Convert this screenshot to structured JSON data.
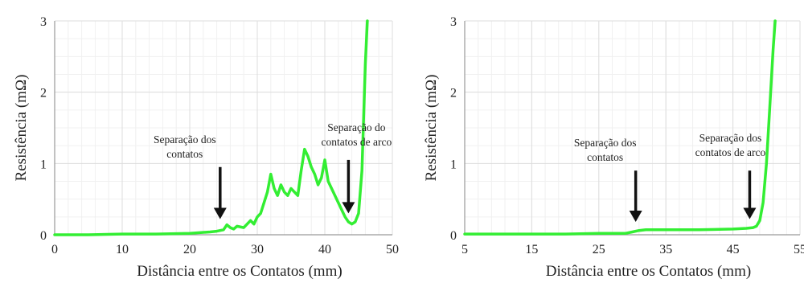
{
  "chart_data": [
    {
      "type": "line",
      "xlabel": "Distância entre os Contatos  (mm)",
      "ylabel": "Resistência (mΩ)",
      "xlim": [
        0,
        50
      ],
      "ylim": [
        0,
        3
      ],
      "xticks": [
        0,
        10,
        20,
        30,
        40,
        50
      ],
      "yticks": [
        0,
        1,
        2,
        3
      ],
      "grid": true,
      "line_color": "#33ee33",
      "series": [
        {
          "x": [
            0,
            5,
            10,
            15,
            20,
            23,
            24,
            25,
            25.5,
            26,
            26.5,
            27,
            28,
            28.5,
            29,
            29.5,
            30,
            30.5,
            31,
            31.5,
            32,
            32.5,
            33,
            33.5,
            34,
            34.5,
            35,
            35.5,
            36,
            36.5,
            37,
            37.5,
            38,
            38.5,
            39,
            39.5,
            40,
            40.5,
            41,
            41.5,
            42,
            42.5,
            43,
            43.5,
            44,
            44.5,
            45,
            45.5,
            46,
            46.3
          ],
          "y": [
            0.0,
            0.0,
            0.01,
            0.01,
            0.02,
            0.04,
            0.05,
            0.07,
            0.14,
            0.1,
            0.08,
            0.12,
            0.1,
            0.15,
            0.2,
            0.15,
            0.25,
            0.3,
            0.45,
            0.6,
            0.85,
            0.65,
            0.55,
            0.7,
            0.6,
            0.55,
            0.65,
            0.6,
            0.55,
            0.9,
            1.2,
            1.1,
            0.95,
            0.85,
            0.7,
            0.8,
            1.05,
            0.75,
            0.65,
            0.55,
            0.45,
            0.35,
            0.25,
            0.18,
            0.15,
            0.18,
            0.3,
            0.9,
            2.4,
            3.0
          ]
        }
      ],
      "annotations": [
        {
          "lines": [
            "Separação dos",
            "contatos"
          ],
          "arrow_x": 24.5,
          "arrow_y_top": 0.95,
          "arrow_y_bottom": 0.22
        },
        {
          "lines": [
            "Separação do",
            "contatos de arco"
          ],
          "arrow_x": 43.5,
          "arrow_y_top": 1.05,
          "arrow_y_bottom": 0.3
        }
      ]
    },
    {
      "type": "line",
      "xlabel": "Distância entre os Contatos  (mm)",
      "ylabel": "Resistência (mΩ)",
      "xlim": [
        5,
        55
      ],
      "ylim": [
        0,
        3
      ],
      "xticks": [
        5,
        15,
        25,
        35,
        45,
        55
      ],
      "yticks": [
        0,
        1,
        2,
        3
      ],
      "grid": true,
      "line_color": "#33ee33",
      "series": [
        {
          "x": [
            5,
            10,
            15,
            20,
            25,
            29,
            30,
            31,
            32,
            35,
            40,
            45,
            47,
            48,
            48.5,
            49,
            49.5,
            50,
            50.5,
            51,
            51.3
          ],
          "y": [
            0.01,
            0.01,
            0.01,
            0.01,
            0.02,
            0.02,
            0.04,
            0.06,
            0.07,
            0.07,
            0.07,
            0.08,
            0.09,
            0.1,
            0.12,
            0.2,
            0.45,
            1.0,
            1.8,
            2.6,
            3.0
          ]
        }
      ],
      "annotations": [
        {
          "lines": [
            "Separação dos",
            "contatos"
          ],
          "arrow_x": 30.5,
          "arrow_y_top": 0.9,
          "arrow_y_bottom": 0.18
        },
        {
          "lines": [
            "Separação dos",
            "contatos de arco"
          ],
          "arrow_x": 47.5,
          "arrow_y_top": 0.9,
          "arrow_y_bottom": 0.22
        }
      ]
    }
  ]
}
